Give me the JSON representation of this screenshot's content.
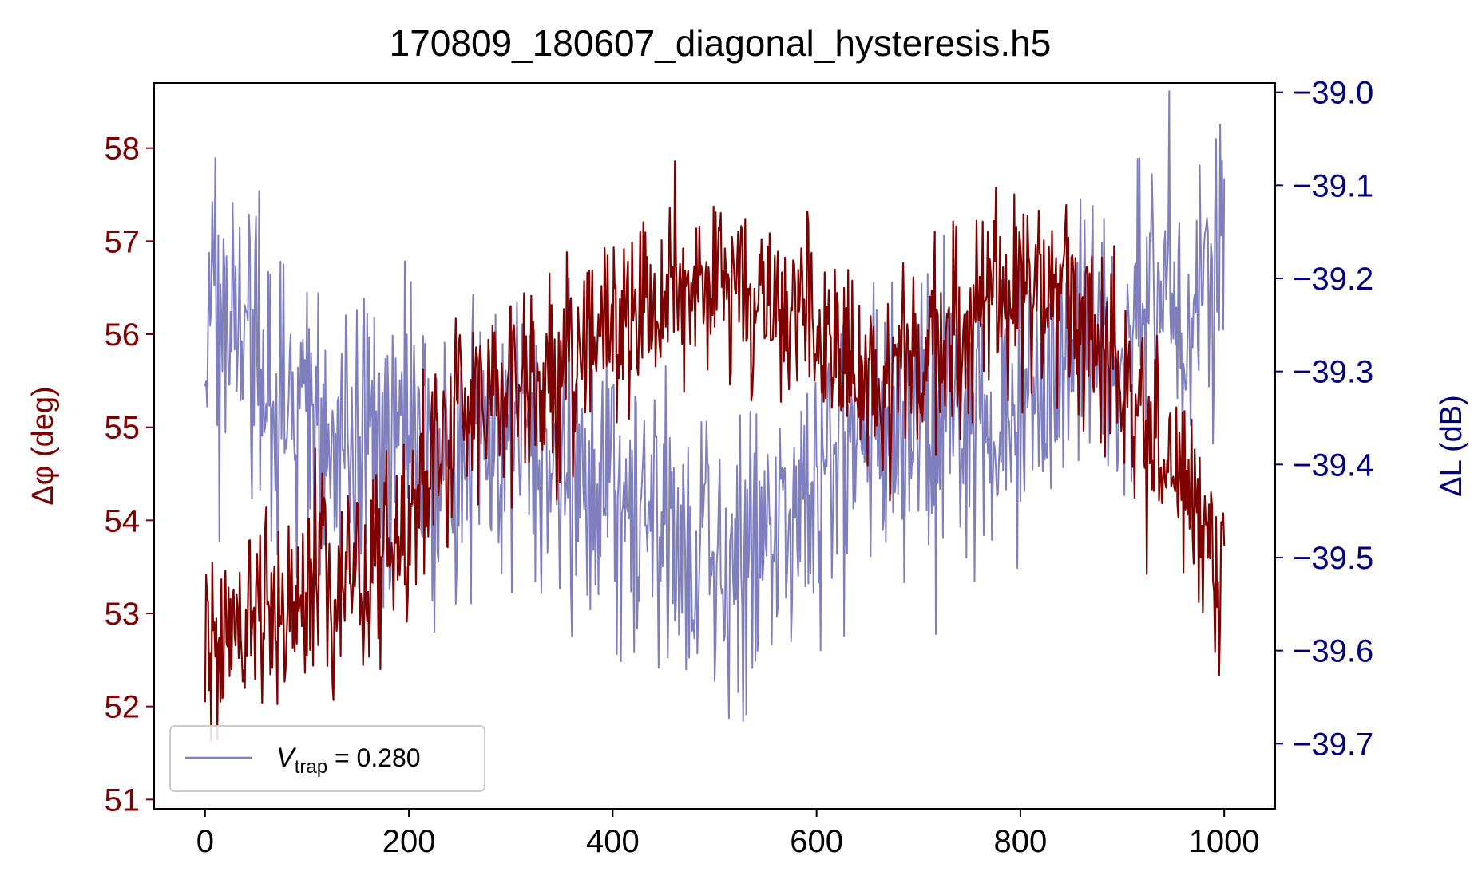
{
  "chart_data": {
    "type": "line",
    "title": "170809_180607_diagonal_hysteresis.h5",
    "xlabel": "",
    "ylabel_left": "Δφ (deg)",
    "ylabel_right": "ΔL (dB)",
    "xlim": [
      -50,
      1050
    ],
    "ylim_left": [
      50.9,
      58.7
    ],
    "ylim_right": [
      -39.77,
      -38.99
    ],
    "x_ticks": [
      0,
      200,
      400,
      600,
      800,
      1000
    ],
    "x_tick_labels": [
      "0",
      "200",
      "400",
      "600",
      "800",
      "1000"
    ],
    "y_left_ticks": [
      51,
      52,
      53,
      54,
      55,
      56,
      57,
      58
    ],
    "y_left_tick_labels": [
      "51",
      "52",
      "53",
      "54",
      "55",
      "56",
      "57",
      "58"
    ],
    "y_right_ticks": [
      -39.7,
      -39.6,
      -39.5,
      -39.4,
      -39.3,
      -39.2,
      -39.1,
      -39.0
    ],
    "y_right_tick_labels": [
      "−39.7",
      "−39.6",
      "−39.5",
      "−39.4",
      "−39.3",
      "−39.2",
      "−39.1",
      "−39.0"
    ],
    "grid": false,
    "legend_position": "lower-left",
    "legend": [
      {
        "label_var": "V",
        "label_sub": "trap",
        "label_rest": " = 0.280",
        "color": "#7f7fbf"
      }
    ],
    "colors": {
      "left_axis": "#800000",
      "right_axis": "#000080",
      "series_phase": "#800000",
      "series_level": "#7f7fbf"
    },
    "series": [
      {
        "axis": "left",
        "color": "#800000",
        "x_step": 40,
        "values": [
          52.7,
          53.0,
          53.2,
          53.4,
          53.5,
          54.0,
          55.0,
          55.3,
          55.5,
          55.7,
          56.0,
          56.4,
          56.5,
          56.4,
          56.3,
          55.9,
          55.4,
          55.6,
          55.9,
          56.2,
          56.5,
          56.6,
          55.9,
          55.0,
          54.4,
          53.5
        ]
      },
      {
        "axis": "right",
        "color": "#7f7fbf",
        "x_step": 40,
        "values": [
          -39.25,
          -39.3,
          -39.35,
          -39.37,
          -39.37,
          -39.38,
          -39.38,
          -39.37,
          -39.38,
          -39.41,
          -39.44,
          -39.47,
          -39.49,
          -39.5,
          -39.47,
          -39.42,
          -39.37,
          -39.35,
          -39.36,
          -39.37,
          -39.34,
          -39.31,
          -39.27,
          -39.25,
          -39.22,
          -39.18
        ]
      }
    ]
  }
}
